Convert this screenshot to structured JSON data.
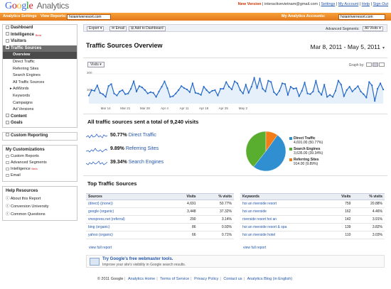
{
  "header": {
    "logo_text": "Google",
    "logo_suffix": "Analytics",
    "new_version": "New Version",
    "user_email": "interactivevietnam@gmail.com",
    "links": [
      "Settings",
      "My Account",
      "Help",
      "Sign Out"
    ]
  },
  "account_bar": {
    "settings_label": "Analytics Settings",
    "view_reports_label": "View Reports:",
    "view_reports_value": "hoianriverresort.com",
    "my_accounts_label": "My Analytics Accounts:",
    "my_accounts_value": "hoianriverresort.com"
  },
  "sidebar": {
    "nav": [
      {
        "label": "Dashboard",
        "icon": "dashboard-icon"
      },
      {
        "label": "Intelligence",
        "beta": "Beta",
        "icon": "intelligence-icon"
      },
      {
        "label": "Visitors",
        "icon": "visitors-icon"
      },
      {
        "label": "Traffic Sources",
        "icon": "traffic-sources-icon",
        "active": true
      }
    ],
    "traffic_sub": [
      "Overview",
      "Direct Traffic",
      "Referring Sites",
      "Search Engines",
      "All Traffic Sources",
      "AdWords",
      "Keywords",
      "Campaigns",
      "Ad Versions"
    ],
    "nav_after": [
      {
        "label": "Content",
        "icon": "content-icon"
      },
      {
        "label": "Goals",
        "icon": "goals-icon"
      }
    ],
    "custom_reporting": "Custom Reporting",
    "my_customizations": {
      "title": "My Customizations",
      "items": [
        "Custom Reports",
        "Advanced Segments",
        "Intelligence",
        "Email"
      ],
      "beta": "Beta"
    },
    "help_resources": {
      "title": "Help Resources",
      "items": [
        "About this Report",
        "Conversion University",
        "Common Questions"
      ]
    }
  },
  "toolbar": {
    "export": "Export",
    "email": "Email",
    "add_dashboard": "Add to Dashboard",
    "adv_segments_label": "Advanced Segments:",
    "adv_segments_value": "All Visits"
  },
  "page": {
    "title": "Traffic Sources Overview",
    "date_range": "Mar 8, 2011 - May 5, 2011",
    "visits_button": "Visits",
    "graph_by": "Graph by:"
  },
  "chart_data": {
    "type": "line",
    "series": [
      {
        "name": "Visits",
        "values": [
          160,
          200,
          195,
          235,
          180,
          170,
          150,
          230,
          245,
          175,
          160,
          190,
          200,
          170,
          175,
          210,
          265,
          190,
          230,
          220,
          200,
          175,
          185,
          180,
          150,
          190,
          225,
          265,
          215,
          150,
          155,
          175,
          200,
          230,
          215,
          205,
          185,
          250,
          180,
          175,
          165,
          225,
          200,
          180,
          195,
          200,
          160,
          210,
          210,
          260,
          225,
          205,
          265,
          250,
          200,
          175,
          240,
          180,
          225,
          290,
          215,
          285,
          210,
          190,
          270,
          260,
          185,
          165,
          195,
          250,
          245,
          165,
          225,
          210,
          215,
          155,
          195,
          255,
          175,
          170,
          190,
          270,
          190,
          165,
          240,
          150,
          165,
          150,
          195,
          270,
          240,
          155,
          200,
          225,
          190,
          210,
          230,
          190,
          170,
          145,
          260,
          235,
          120,
          210,
          250,
          205
        ]
      }
    ],
    "x_labels": [
      "Mar 14",
      "Mar 21",
      "Mar 28",
      "Apr 4",
      "Apr 11",
      "Apr 18",
      "Apr 25",
      "May 2"
    ],
    "y_max_label": "300",
    "y_min_label": "300",
    "ylim": [
      100,
      320
    ]
  },
  "summary": {
    "heading": "All traffic sources sent a total of 9,240 visits",
    "rows": [
      {
        "pct": "50.77%",
        "name": "Direct Traffic"
      },
      {
        "pct": "9.89%",
        "name": "Referring Sites"
      },
      {
        "pct": "39.34%",
        "name": "Search Engines"
      }
    ]
  },
  "pie": {
    "slices": [
      {
        "name": "Direct Traffic",
        "value": 4691,
        "pct": 50.77,
        "detail": "4,691.00 (50.77%)",
        "color": "#2f8fd0"
      },
      {
        "name": "Search Engines",
        "value": 3635,
        "pct": 39.34,
        "detail": "3,635.00 (39.34%)",
        "color": "#5aae2f"
      },
      {
        "name": "Referring Sites",
        "value": 914,
        "pct": 9.89,
        "detail": "914.00 (9.89%)",
        "color": "#f37d16"
      }
    ]
  },
  "top_sources": {
    "heading": "Top Traffic Sources",
    "sources": {
      "headers": [
        "Sources",
        "Visits",
        "% visits"
      ],
      "rows": [
        [
          "(direct) ((none))",
          "4,691",
          "50.77%"
        ],
        [
          "google (organic)",
          "3,448",
          "37.32%"
        ],
        [
          "vnexpress.net (referral)",
          "290",
          "3.14%"
        ],
        [
          "bing (organic)",
          "86",
          "0.93%"
        ],
        [
          "yahoo (organic)",
          "66",
          "0.71%"
        ]
      ],
      "full_report": "view full report"
    },
    "keywords": {
      "headers": [
        "Keywords",
        "Visits",
        "% visits"
      ],
      "rows": [
        [
          "hoi an riverside resort",
          "759",
          "20.88%"
        ],
        [
          "hoi an riverside",
          "162",
          "4.46%"
        ],
        [
          "riverside resort hoi an",
          "142",
          "3.91%"
        ],
        [
          "hoi an riverside resort & spa",
          "139",
          "3.82%"
        ],
        [
          "hoi an riverside hotel",
          "110",
          "3.03%"
        ]
      ],
      "full_report": "view full report"
    }
  },
  "promo": {
    "title": "Try Google's free webmaster tools.",
    "subtitle": "Improve your site's visibility in Google search results."
  },
  "footer": {
    "copyright": "© 2011 Google",
    "links": [
      "Analytics Home",
      "Terms of Service",
      "Privacy Policy",
      "Contact us",
      "Analytics Blog (in English)"
    ]
  }
}
